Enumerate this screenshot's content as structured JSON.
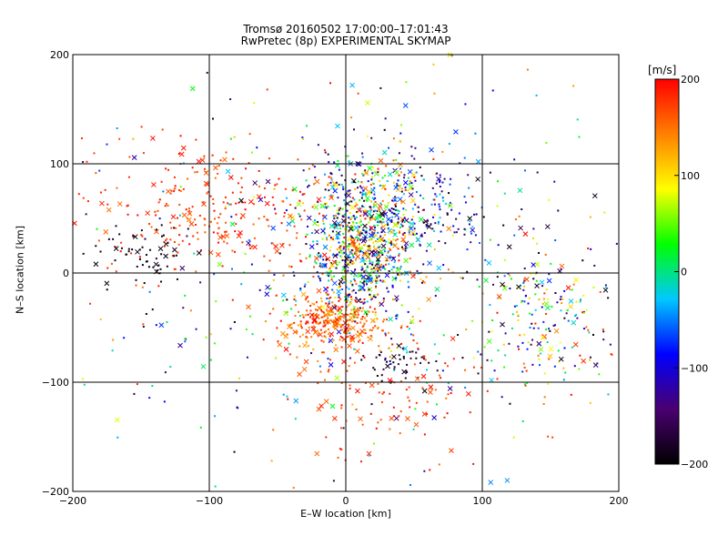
{
  "title_line1": "Tromsø 20160502 17:00:00–17:01:43",
  "title_line2": "RwPretec (8p) EXPERIMENTAL SKYMAP",
  "chart_data": {
    "type": "scatter",
    "title": "Tromsø 20160502 17:00:00–17:01:43",
    "subtitle": "RwPretec (8p) EXPERIMENTAL SKYMAP",
    "xlabel": "E–W location [km]",
    "ylabel": "N–S location [km]",
    "xlim": [
      -200,
      200
    ],
    "ylim": [
      -200,
      200
    ],
    "xticks": [
      -200,
      -100,
      0,
      100,
      200
    ],
    "yticks": [
      -200,
      -100,
      0,
      100,
      200
    ],
    "grid": true,
    "colorbar": {
      "label": "[m/s]",
      "range": [
        -200,
        200
      ],
      "ticks": [
        -200,
        -100,
        0,
        100,
        200
      ],
      "colormap": [
        "#000000",
        "#4a0070",
        "#0000ff",
        "#00c8ff",
        "#00ff00",
        "#ffff00",
        "#ff8000",
        "#ff0000"
      ]
    },
    "markers": [
      "dot",
      "x"
    ],
    "clusters": [
      {
        "x": 15,
        "y": 50,
        "sx": 22,
        "sy": 30,
        "n": 520,
        "v": [
          -200,
          200
        ]
      },
      {
        "x": 10,
        "y": 5,
        "sx": 20,
        "sy": 25,
        "n": 380,
        "v": [
          -200,
          200
        ]
      },
      {
        "x": -10,
        "y": -45,
        "sx": 18,
        "sy": 12,
        "n": 300,
        "v": [
          120,
          200
        ]
      },
      {
        "x": -100,
        "y": 60,
        "sx": 45,
        "sy": 30,
        "n": 260,
        "v": [
          150,
          200
        ]
      },
      {
        "x": -150,
        "y": 15,
        "sx": 18,
        "sy": 15,
        "n": 60,
        "v": [
          -200,
          -180
        ]
      },
      {
        "x": 40,
        "y": -80,
        "sx": 10,
        "sy": 8,
        "n": 45,
        "v": [
          -200,
          -160
        ]
      },
      {
        "x": 140,
        "y": -40,
        "sx": 30,
        "sy": 35,
        "n": 200,
        "v": [
          -200,
          200
        ]
      },
      {
        "x": 60,
        "y": 60,
        "sx": 25,
        "sy": 25,
        "n": 140,
        "v": [
          -200,
          0
        ]
      },
      {
        "x": 0,
        "y": 0,
        "sx": 110,
        "sy": 90,
        "n": 420,
        "v": [
          -200,
          200
        ]
      },
      {
        "x": 30,
        "y": -110,
        "sx": 40,
        "sy": 30,
        "n": 110,
        "v": [
          150,
          200
        ]
      }
    ]
  }
}
